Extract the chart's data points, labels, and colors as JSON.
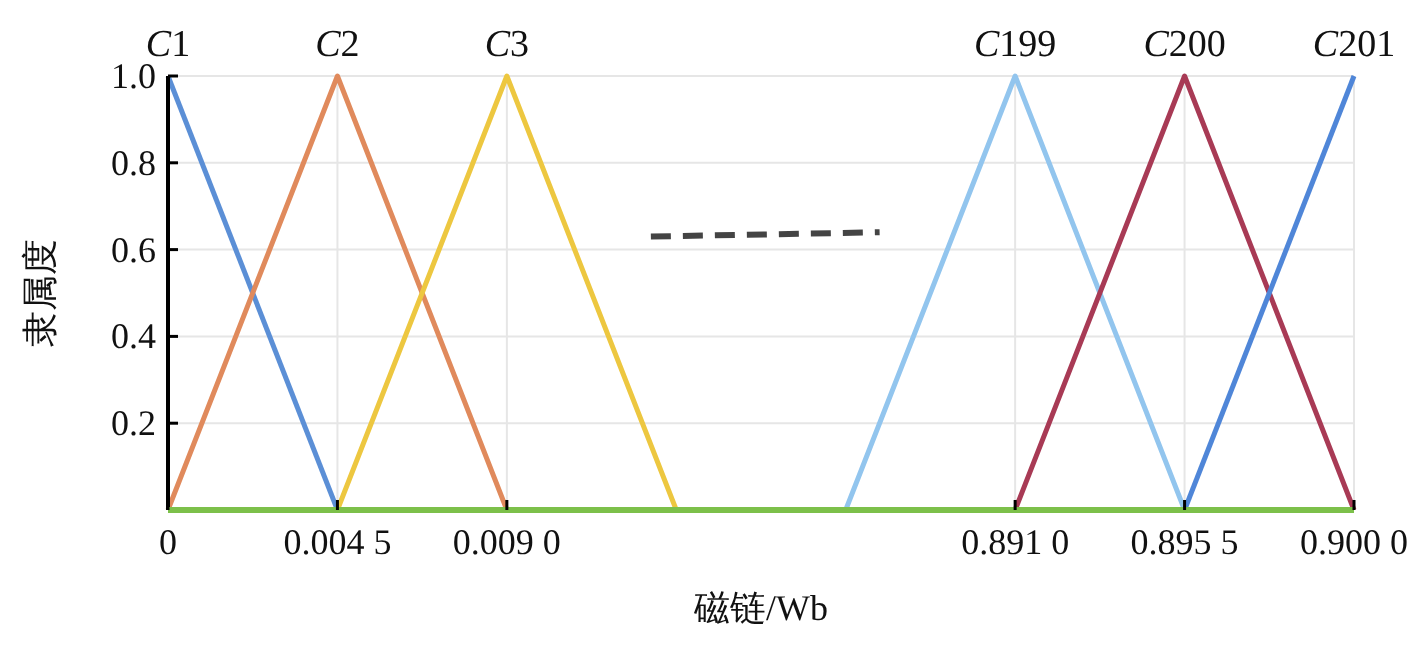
{
  "chart_data": {
    "type": "line",
    "xlabel": "磁链/Wb",
    "ylabel": "隶属度",
    "categories": [
      "0",
      "0.004 5",
      "0.009 0",
      null,
      null,
      "0.891 0",
      "0.895 5",
      "0.900 0"
    ],
    "series": [
      {
        "name": "C1",
        "color": "#5b8fd6",
        "values": [
          1,
          0,
          null,
          null,
          null,
          null,
          null,
          null
        ]
      },
      {
        "name": "C2",
        "color": "#e08a5c",
        "values": [
          0,
          1,
          0,
          null,
          null,
          null,
          null,
          null
        ]
      },
      {
        "name": "C3",
        "color": "#edc740",
        "values": [
          null,
          0,
          1,
          0,
          null,
          null,
          null,
          null
        ]
      },
      {
        "name": "C199",
        "color": "#92c5ee",
        "values": [
          null,
          null,
          null,
          null,
          0,
          1,
          0,
          null
        ]
      },
      {
        "name": "C200",
        "color": "#a83a55",
        "values": [
          null,
          null,
          null,
          null,
          null,
          0,
          1,
          0
        ]
      },
      {
        "name": "C201",
        "color": "#4f86d8",
        "values": [
          null,
          null,
          null,
          null,
          null,
          null,
          0,
          1
        ]
      }
    ],
    "ylim": [
      0,
      1
    ],
    "yticks": [
      {
        "value": 0.2,
        "label": "0.2"
      },
      {
        "value": 0.4,
        "label": "0.4"
      },
      {
        "value": 0.6,
        "label": "0.6"
      },
      {
        "value": 0.8,
        "label": "0.8"
      },
      {
        "value": 1,
        "label": "1.0"
      }
    ],
    "grid": true
  }
}
